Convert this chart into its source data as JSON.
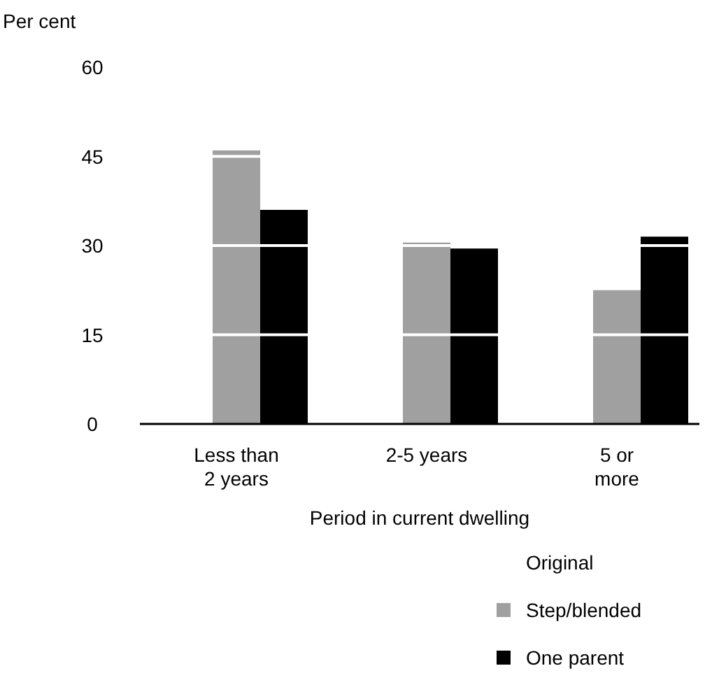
{
  "chart_data": {
    "type": "bar",
    "ylabel": "Per cent",
    "xlabel": "Period in current dwelling",
    "categories": [
      "Less than\n2 years",
      "2-5 years",
      "5 or\nmore"
    ],
    "series": [
      {
        "name": "Original",
        "values": [
          null,
          null,
          null
        ]
      },
      {
        "name": "Step/blended",
        "color": "#a0a0a0",
        "values": [
          46,
          30.5,
          22.5
        ]
      },
      {
        "name": "One parent",
        "color": "#000000",
        "values": [
          36,
          29.5,
          31.5
        ]
      }
    ],
    "ylim": [
      0,
      60
    ],
    "yticks": [
      0,
      15,
      30,
      45,
      60
    ],
    "grid": "y",
    "legend": "bottom right"
  }
}
